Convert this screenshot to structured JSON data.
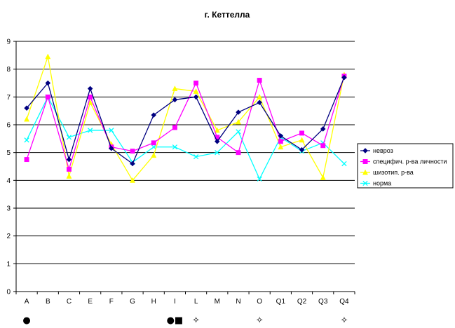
{
  "chart_data": {
    "type": "line",
    "title": "г. Кеттелла",
    "xlabel": "",
    "ylabel": "",
    "categories": [
      "A",
      "B",
      "C",
      "E",
      "F",
      "G",
      "H",
      "I",
      "L",
      "M",
      "N",
      "O",
      "Q1",
      "Q2",
      "Q3",
      "Q4"
    ],
    "ylim": [
      0,
      9
    ],
    "yticks": [
      0,
      1,
      2,
      3,
      4,
      5,
      6,
      7,
      8,
      9
    ],
    "grid": "horizontal",
    "legend_position": "right",
    "series": [
      {
        "name": "невроз",
        "color": "#000080",
        "marker": "diamond",
        "values": [
          6.6,
          7.5,
          4.75,
          7.3,
          5.15,
          4.6,
          6.35,
          6.9,
          7.0,
          5.4,
          6.45,
          6.8,
          5.6,
          5.1,
          5.85,
          7.7
        ]
      },
      {
        "name": "специфич. р-ва личности",
        "color": "#FF00FF",
        "marker": "square",
        "values": [
          4.75,
          7.0,
          4.4,
          7.0,
          5.2,
          5.05,
          5.35,
          5.9,
          7.5,
          5.55,
          5.0,
          7.6,
          5.4,
          5.7,
          5.25,
          7.75
        ]
      },
      {
        "name": "шизотип. р-ва",
        "color": "#FFFF00",
        "marker": "triangle",
        "values": [
          6.2,
          8.45,
          4.15,
          6.8,
          5.3,
          4.0,
          4.9,
          7.3,
          7.2,
          5.8,
          6.1,
          7.0,
          5.2,
          5.45,
          4.1,
          7.8
        ]
      },
      {
        "name": "норма",
        "color": "#00FFFF",
        "marker": "x",
        "values": [
          5.45,
          7.0,
          5.55,
          5.8,
          5.8,
          4.65,
          5.2,
          5.2,
          4.85,
          5.0,
          5.75,
          4.05,
          5.55,
          5.05,
          5.35,
          4.6
        ]
      }
    ],
    "annotations": [
      {
        "category": "A",
        "symbol": "●"
      },
      {
        "category": "I",
        "symbol": "●■"
      },
      {
        "category": "L",
        "symbol": "✧"
      },
      {
        "category": "O",
        "symbol": "✧"
      },
      {
        "category": "Q4",
        "symbol": "✧"
      }
    ]
  }
}
